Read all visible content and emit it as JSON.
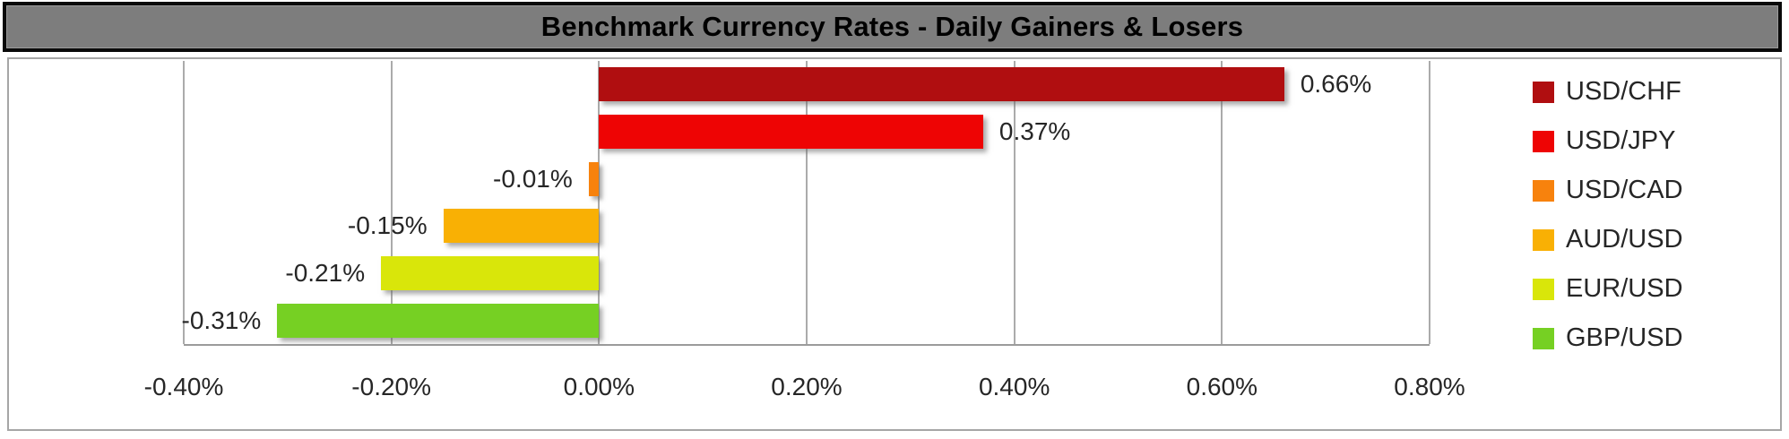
{
  "title": "Benchmark Currency Rates - Daily Gainers & Losers",
  "chart_data": {
    "type": "bar",
    "orientation": "horizontal",
    "title": "Benchmark Currency Rates - Daily Gainers & Losers",
    "categories": [
      "USD/CHF",
      "USD/JPY",
      "USD/CAD",
      "AUD/USD",
      "EUR/USD",
      "GBP/USD"
    ],
    "values": [
      0.66,
      0.37,
      -0.01,
      -0.15,
      -0.21,
      -0.31
    ],
    "value_labels": [
      "0.66%",
      "0.37%",
      "-0.01%",
      "-0.15%",
      "-0.21%",
      "-0.31%"
    ],
    "bar_colors": [
      "#b00e10",
      "#ee0404",
      "#f7820d",
      "#f9b004",
      "#d9e60a",
      "#76d023"
    ],
    "xlabel": "",
    "ylabel": "",
    "xlim": [
      -0.4,
      0.8
    ],
    "x_ticks": [
      "-0.40%",
      "-0.20%",
      "0.00%",
      "0.20%",
      "0.40%",
      "0.60%",
      "0.80%"
    ],
    "x_tick_values": [
      -0.4,
      -0.2,
      0.0,
      0.2,
      0.4,
      0.6,
      0.8
    ],
    "grid": true,
    "legend_position": "right",
    "legend": [
      {
        "label": "USD/CHF",
        "color": "#b00e10"
      },
      {
        "label": "USD/JPY",
        "color": "#ee0404"
      },
      {
        "label": "USD/CAD",
        "color": "#f7820d"
      },
      {
        "label": "AUD/USD",
        "color": "#f9b004"
      },
      {
        "label": "EUR/USD",
        "color": "#d9e60a"
      },
      {
        "label": "GBP/USD",
        "color": "#76d023"
      }
    ]
  },
  "styles": {
    "title_background": "#7d7d7d",
    "title_border": "#0a0a0a",
    "chart_border": "#a6a6a6",
    "gridline_color": "#ababab",
    "axis_line_color": "#9b9b9b",
    "text_color": "#262626"
  }
}
